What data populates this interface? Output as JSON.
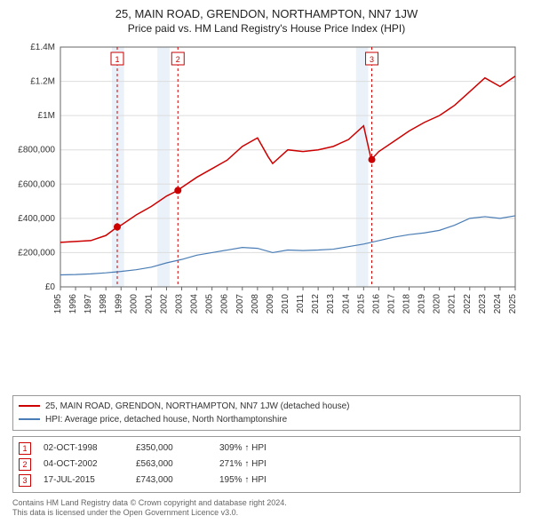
{
  "title": "25, MAIN ROAD, GRENDON, NORTHAMPTON, NN7 1JW",
  "subtitle": "Price paid vs. HM Land Registry's House Price Index (HPI)",
  "chart": {
    "type": "line",
    "background_color": "#ffffff",
    "grid_color": "#dddddd",
    "shaded_band_color": "#eaf1f8",
    "axis_color": "#666666",
    "xlim": [
      1995,
      2025
    ],
    "ylim": [
      0,
      1400000
    ],
    "ytick_step": 200000,
    "ytick_labels": [
      "£0",
      "£200,000",
      "£400,000",
      "£600,000",
      "£800,000",
      "£1M",
      "£1.2M",
      "£1.4M"
    ],
    "xtick_step": 1,
    "xtick_labels": [
      "1995",
      "1996",
      "1997",
      "1998",
      "1999",
      "2000",
      "2001",
      "2002",
      "2003",
      "2004",
      "2005",
      "2006",
      "2007",
      "2008",
      "2009",
      "2010",
      "2011",
      "2012",
      "2013",
      "2014",
      "2015",
      "2016",
      "2017",
      "2018",
      "2019",
      "2020",
      "2021",
      "2022",
      "2023",
      "2024",
      "2025"
    ],
    "series": [
      {
        "name": "25, MAIN ROAD, GRENDON, NORTHAMPTON, NN7 1JW (detached house)",
        "color": "#cc0000",
        "line_width": 1.5,
        "data": [
          [
            1995,
            260000
          ],
          [
            1996,
            265000
          ],
          [
            1997,
            270000
          ],
          [
            1998,
            300000
          ],
          [
            1998.75,
            350000
          ],
          [
            1999,
            360000
          ],
          [
            2000,
            420000
          ],
          [
            2001,
            470000
          ],
          [
            2002,
            530000
          ],
          [
            2002.75,
            563000
          ],
          [
            2003,
            580000
          ],
          [
            2004,
            640000
          ],
          [
            2005,
            690000
          ],
          [
            2006,
            740000
          ],
          [
            2007,
            820000
          ],
          [
            2008,
            870000
          ],
          [
            2008.7,
            760000
          ],
          [
            2009,
            720000
          ],
          [
            2010,
            800000
          ],
          [
            2011,
            790000
          ],
          [
            2012,
            800000
          ],
          [
            2013,
            820000
          ],
          [
            2014,
            860000
          ],
          [
            2015,
            940000
          ],
          [
            2015.5,
            743000
          ],
          [
            2016,
            790000
          ],
          [
            2017,
            850000
          ],
          [
            2018,
            910000
          ],
          [
            2019,
            960000
          ],
          [
            2020,
            1000000
          ],
          [
            2021,
            1060000
          ],
          [
            2022,
            1140000
          ],
          [
            2023,
            1220000
          ],
          [
            2024,
            1170000
          ],
          [
            2025,
            1230000
          ]
        ]
      },
      {
        "name": "HPI: Average price, detached house, North Northamptonshire",
        "color": "#4a7db5",
        "line_width": 1.2,
        "data": [
          [
            1995,
            70000
          ],
          [
            1996,
            72000
          ],
          [
            1997,
            76000
          ],
          [
            1998,
            82000
          ],
          [
            1999,
            90000
          ],
          [
            2000,
            100000
          ],
          [
            2001,
            115000
          ],
          [
            2002,
            140000
          ],
          [
            2003,
            160000
          ],
          [
            2004,
            185000
          ],
          [
            2005,
            200000
          ],
          [
            2006,
            215000
          ],
          [
            2007,
            230000
          ],
          [
            2008,
            225000
          ],
          [
            2009,
            200000
          ],
          [
            2010,
            215000
          ],
          [
            2011,
            212000
          ],
          [
            2012,
            215000
          ],
          [
            2013,
            220000
          ],
          [
            2014,
            235000
          ],
          [
            2015,
            250000
          ],
          [
            2016,
            270000
          ],
          [
            2017,
            290000
          ],
          [
            2018,
            305000
          ],
          [
            2019,
            315000
          ],
          [
            2020,
            330000
          ],
          [
            2021,
            360000
          ],
          [
            2022,
            400000
          ],
          [
            2023,
            410000
          ],
          [
            2024,
            400000
          ],
          [
            2025,
            415000
          ]
        ]
      }
    ],
    "shaded_bands": [
      {
        "from": 1998.4,
        "to": 1999.2
      },
      {
        "from": 2001.4,
        "to": 2002.2
      },
      {
        "from": 2014.5,
        "to": 2015.3
      }
    ],
    "event_markers": [
      {
        "n": "1",
        "year": 1998.75,
        "price": 350000
      },
      {
        "n": "2",
        "year": 2002.75,
        "price": 563000
      },
      {
        "n": "3",
        "year": 2015.54,
        "price": 743000
      }
    ],
    "event_line_color": "#cc0000",
    "event_line_dash": "3,3",
    "marker_fill": "#cc0000",
    "marker_radius": 4
  },
  "legend_items": [
    {
      "color": "#cc0000",
      "label": "25, MAIN ROAD, GRENDON, NORTHAMPTON, NN7 1JW (detached house)"
    },
    {
      "color": "#4a7db5",
      "label": "HPI: Average price, detached house, North Northamptonshire"
    }
  ],
  "events": [
    {
      "n": "1",
      "date": "02-OCT-1998",
      "price": "£350,000",
      "hpi": "309% ↑ HPI"
    },
    {
      "n": "2",
      "date": "04-OCT-2002",
      "price": "£563,000",
      "hpi": "271% ↑ HPI"
    },
    {
      "n": "3",
      "date": "17-JUL-2015",
      "price": "£743,000",
      "hpi": "195% ↑ HPI"
    }
  ],
  "attribution_line1": "Contains HM Land Registry data © Crown copyright and database right 2024.",
  "attribution_line2": "This data is licensed under the Open Government Licence v3.0."
}
